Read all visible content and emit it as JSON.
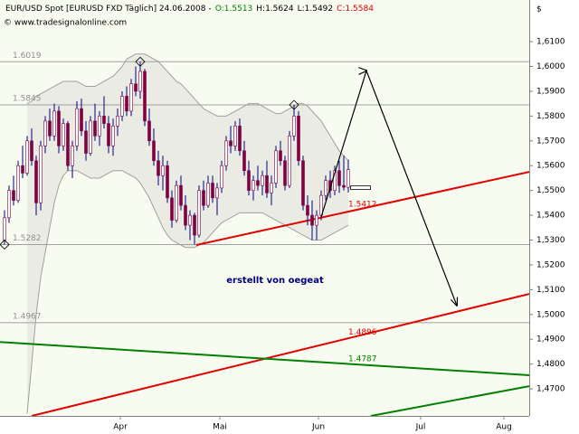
{
  "chart_data": {
    "type": "candlestick",
    "title": "EUR/USD Spot [EURUSD FXD  Täglich] 24.06.2008 -",
    "ohlc_labels": [
      {
        "text": "O:1.5513",
        "color": "#008000"
      },
      {
        "text": "H:1.5624",
        "color": "#000000"
      },
      {
        "text": "L:1.5492",
        "color": "#000000"
      },
      {
        "text": "C:1.5584",
        "color": "#e00000"
      }
    ],
    "source": "© www.tradesignalonline.com",
    "y_axis_label": "$",
    "annotation": "erstellt von oegeat",
    "up_color": "#ffffff",
    "down_color": "#800040",
    "wick_color": "#000080",
    "band_color": "#a0a0a0",
    "xlim": [
      -1,
      116
    ],
    "ylim": [
      1.4591,
      1.6268
    ],
    "xticks": [
      {
        "value": 25.6,
        "label": "Apr"
      },
      {
        "value": 47.6,
        "label": "Mai"
      },
      {
        "value": 69.4,
        "label": "Jun"
      },
      {
        "value": 92,
        "label": "Jul"
      },
      {
        "value": 110.4,
        "label": "Aug"
      }
    ],
    "yticks": [
      {
        "value": 1.47,
        "label": "1,4700"
      },
      {
        "value": 1.48,
        "label": "1,4800"
      },
      {
        "value": 1.49,
        "label": "1,4900"
      },
      {
        "value": 1.5,
        "label": "1,5000"
      },
      {
        "value": 1.51,
        "label": "1,5100"
      },
      {
        "value": 1.52,
        "label": "1,5200"
      },
      {
        "value": 1.53,
        "label": "1,5300"
      },
      {
        "value": 1.54,
        "label": "1,5400"
      },
      {
        "value": 1.55,
        "label": "1,5500"
      },
      {
        "value": 1.56,
        "label": "1,5600"
      },
      {
        "value": 1.57,
        "label": "1,5700"
      },
      {
        "value": 1.58,
        "label": "1,5800"
      },
      {
        "value": 1.59,
        "label": "1,5900"
      },
      {
        "value": 1.6,
        "label": "1,6000"
      },
      {
        "value": 1.61,
        "label": "1,6100"
      }
    ],
    "candles": [
      [
        1.53,
        1.542,
        1.5282,
        1.539
      ],
      [
        1.539,
        1.552,
        1.537,
        1.55
      ],
      [
        1.55,
        1.556,
        1.544,
        1.546
      ],
      [
        1.546,
        1.562,
        1.545,
        1.56
      ],
      [
        1.56,
        1.568,
        1.555,
        1.557
      ],
      [
        1.557,
        1.572,
        1.556,
        1.57
      ],
      [
        1.57,
        1.575,
        1.56,
        1.562
      ],
      [
        1.562,
        1.564,
        1.54,
        1.545
      ],
      [
        1.545,
        1.57,
        1.542,
        1.568
      ],
      [
        1.568,
        1.58,
        1.565,
        1.578
      ],
      [
        1.578,
        1.583,
        1.57,
        1.572
      ],
      [
        1.572,
        1.585,
        1.57,
        1.582
      ],
      [
        1.582,
        1.584,
        1.565,
        1.568
      ],
      [
        1.568,
        1.579,
        1.566,
        1.577
      ],
      [
        1.577,
        1.578,
        1.558,
        1.56
      ],
      [
        1.56,
        1.57,
        1.555,
        1.568
      ],
      [
        1.568,
        1.586,
        1.566,
        1.583
      ],
      [
        1.583,
        1.587,
        1.572,
        1.574
      ],
      [
        1.574,
        1.578,
        1.562,
        1.565
      ],
      [
        1.565,
        1.58,
        1.564,
        1.578
      ],
      [
        1.578,
        1.585,
        1.57,
        1.572
      ],
      [
        1.572,
        1.582,
        1.568,
        1.58
      ],
      [
        1.58,
        1.588,
        1.575,
        1.577
      ],
      [
        1.577,
        1.58,
        1.565,
        1.568
      ],
      [
        1.568,
        1.579,
        1.564,
        1.576
      ],
      [
        1.576,
        1.583,
        1.572,
        1.58
      ],
      [
        1.58,
        1.59,
        1.578,
        1.588
      ],
      [
        1.588,
        1.592,
        1.58,
        1.582
      ],
      [
        1.582,
        1.595,
        1.58,
        1.593
      ],
      [
        1.593,
        1.6,
        1.588,
        1.59
      ],
      [
        1.59,
        1.6019,
        1.587,
        1.598
      ],
      [
        1.598,
        1.599,
        1.576,
        1.578
      ],
      [
        1.578,
        1.583,
        1.568,
        1.57
      ],
      [
        1.57,
        1.575,
        1.56,
        1.562
      ],
      [
        1.562,
        1.566,
        1.552,
        1.556
      ],
      [
        1.556,
        1.564,
        1.55,
        1.56
      ],
      [
        1.56,
        1.562,
        1.545,
        1.547
      ],
      [
        1.547,
        1.55,
        1.535,
        1.538
      ],
      [
        1.538,
        1.554,
        1.537,
        1.552
      ],
      [
        1.552,
        1.556,
        1.542,
        1.544
      ],
      [
        1.544,
        1.548,
        1.534,
        1.536
      ],
      [
        1.536,
        1.542,
        1.53,
        1.54
      ],
      [
        1.54,
        1.541,
        1.5282,
        1.532
      ],
      [
        1.532,
        1.552,
        1.531,
        1.55
      ],
      [
        1.55,
        1.554,
        1.542,
        1.544
      ],
      [
        1.544,
        1.556,
        1.543,
        1.553
      ],
      [
        1.553,
        1.556,
        1.545,
        1.547
      ],
      [
        1.547,
        1.553,
        1.54,
        1.551
      ],
      [
        1.551,
        1.562,
        1.549,
        1.56
      ],
      [
        1.56,
        1.572,
        1.558,
        1.57
      ],
      [
        1.57,
        1.576,
        1.565,
        1.568
      ],
      [
        1.568,
        1.578,
        1.566,
        1.576
      ],
      [
        1.576,
        1.579,
        1.564,
        1.566
      ],
      [
        1.566,
        1.57,
        1.556,
        1.558
      ],
      [
        1.558,
        1.562,
        1.548,
        1.55
      ],
      [
        1.55,
        1.556,
        1.546,
        1.554
      ],
      [
        1.554,
        1.56,
        1.55,
        1.552
      ],
      [
        1.552,
        1.558,
        1.548,
        1.556
      ],
      [
        1.556,
        1.562,
        1.547,
        1.549
      ],
      [
        1.549,
        1.556,
        1.544,
        1.553
      ],
      [
        1.553,
        1.568,
        1.551,
        1.566
      ],
      [
        1.566,
        1.57,
        1.56,
        1.562
      ],
      [
        1.562,
        1.564,
        1.55,
        1.552
      ],
      [
        1.552,
        1.574,
        1.551,
        1.572
      ],
      [
        1.572,
        1.5845,
        1.57,
        1.58
      ],
      [
        1.58,
        1.582,
        1.56,
        1.562
      ],
      [
        1.562,
        1.564,
        1.542,
        1.544
      ],
      [
        1.544,
        1.548,
        1.536,
        1.54
      ],
      [
        1.54,
        1.546,
        1.53,
        1.536
      ],
      [
        1.536,
        1.542,
        1.53,
        1.54
      ],
      [
        1.54,
        1.55,
        1.538,
        1.548
      ],
      [
        1.548,
        1.556,
        1.546,
        1.554
      ],
      [
        1.554,
        1.558,
        1.547,
        1.55
      ],
      [
        1.55,
        1.56,
        1.548,
        1.558
      ],
      [
        1.558,
        1.562,
        1.549,
        1.552
      ],
      [
        1.552,
        1.564,
        1.55,
        1.5513
      ],
      [
        1.5513,
        1.5624,
        1.5492,
        1.5584
      ]
    ],
    "upper_band": [
      null,
      null,
      null,
      null,
      null,
      1.585,
      1.586,
      1.588,
      1.589,
      1.59,
      1.591,
      1.592,
      1.593,
      1.594,
      1.594,
      1.594,
      1.594,
      1.593,
      1.592,
      1.592,
      1.592,
      1.593,
      1.594,
      1.595,
      1.596,
      1.598,
      1.6,
      1.603,
      1.604,
      1.605,
      1.605,
      1.605,
      1.604,
      1.603,
      1.602,
      1.6,
      1.598,
      1.596,
      1.594,
      1.593,
      1.591,
      1.589,
      1.587,
      1.585,
      1.583,
      1.582,
      1.581,
      1.58,
      1.58,
      1.58,
      1.581,
      1.582,
      1.583,
      1.584,
      1.585,
      1.585,
      1.585,
      1.584,
      1.583,
      1.582,
      1.581,
      1.581,
      1.582,
      1.583,
      1.584,
      1.585,
      1.585,
      1.584,
      1.582,
      1.58,
      1.578,
      1.575,
      1.572,
      1.569,
      1.566,
      1.564,
      1.562
    ],
    "lower_band": [
      null,
      null,
      null,
      null,
      null,
      1.46,
      1.48,
      1.5,
      1.515,
      1.525,
      1.535,
      1.545,
      1.552,
      1.556,
      1.558,
      1.558,
      1.558,
      1.557,
      1.556,
      1.555,
      1.555,
      1.555,
      1.556,
      1.557,
      1.558,
      1.558,
      1.558,
      1.557,
      1.556,
      1.555,
      1.553,
      1.55,
      1.547,
      1.543,
      1.539,
      1.535,
      1.532,
      1.53,
      1.529,
      1.528,
      1.527,
      1.527,
      1.527,
      1.528,
      1.529,
      1.531,
      1.533,
      1.535,
      1.537,
      1.538,
      1.539,
      1.54,
      1.541,
      1.541,
      1.541,
      1.541,
      1.541,
      1.541,
      1.54,
      1.539,
      1.538,
      1.537,
      1.536,
      1.535,
      1.534,
      1.533,
      1.532,
      1.531,
      1.53,
      1.53,
      1.53,
      1.531,
      1.532,
      1.533,
      1.534,
      1.535,
      1.536
    ],
    "levels": [
      1.6019,
      1.5845,
      1.5282,
      1.4967
    ],
    "trendlines": [
      {
        "color": "#e00000",
        "x": [
          42.4,
          116
        ],
        "y": [
          1.528,
          1.5575
        ],
        "label": 1.5412
      },
      {
        "color": "#e00000",
        "x": [
          6,
          116
        ],
        "y": [
          1.4591,
          1.5083
        ],
        "label": 1.4896
      },
      {
        "color": "#008000",
        "x": [
          -1,
          116
        ],
        "y": [
          1.4889,
          1.4755
        ],
        "label": 1.4787
      },
      {
        "color": "#008000",
        "x": [
          81,
          116
        ],
        "y": [
          1.4591,
          1.4711
        ]
      }
    ],
    "arrow": {
      "color": "#000000",
      "x": [
        70,
        80,
        100
      ],
      "y": [
        1.5393,
        1.5983,
        1.5036
      ]
    }
  }
}
